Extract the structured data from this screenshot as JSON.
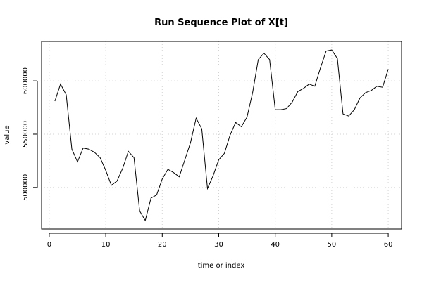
{
  "chart_data": {
    "type": "line",
    "title": "Run Sequence Plot of X[t]",
    "xlabel": "time or index",
    "ylabel": "value",
    "xlim": [
      -1.36,
      62.36
    ],
    "ylim": [
      461000,
      637000
    ],
    "x_ticks": [
      0,
      10,
      20,
      30,
      40,
      50,
      60
    ],
    "x_tick_labels": [
      "0",
      "10",
      "20",
      "30",
      "40",
      "50",
      "60"
    ],
    "y_ticks": [
      500000,
      550000,
      600000
    ],
    "y_tick_labels": [
      "500000",
      "550000",
      "600000"
    ],
    "grid": true,
    "legend": "none",
    "series": [
      {
        "x": [
          1,
          2,
          3,
          4,
          5,
          6,
          7,
          8,
          9,
          10,
          11,
          12,
          13,
          14,
          15,
          16,
          17,
          18,
          19,
          20,
          21,
          22,
          23,
          24,
          25,
          26,
          27,
          28,
          29,
          30,
          31,
          32,
          33,
          34,
          35,
          36,
          37,
          38,
          39,
          40,
          41,
          42,
          43,
          44,
          45,
          46,
          47,
          48,
          49,
          50,
          51,
          52,
          53,
          54,
          55,
          56,
          57,
          58,
          59,
          60
        ],
        "values": [
          581000,
          597000,
          587000,
          536000,
          524000,
          537000,
          536000,
          533000,
          528000,
          516000,
          502000,
          506000,
          518000,
          534000,
          528000,
          478000,
          469000,
          490000,
          493000,
          508000,
          517000,
          514000,
          510000,
          526000,
          542000,
          565000,
          555000,
          499000,
          511000,
          526000,
          532000,
          549000,
          561000,
          557000,
          566000,
          589000,
          620000,
          626000,
          620000,
          573000,
          573000,
          574000,
          580000,
          590000,
          593000,
          597000,
          595000,
          612000,
          628000,
          629000,
          621000,
          569000,
          567000,
          573000,
          584000,
          589000,
          591000,
          595000,
          594000,
          611000
        ]
      }
    ]
  },
  "colors": {
    "line": "#000000",
    "axis": "#000000",
    "grid": "#d3d3d3"
  }
}
